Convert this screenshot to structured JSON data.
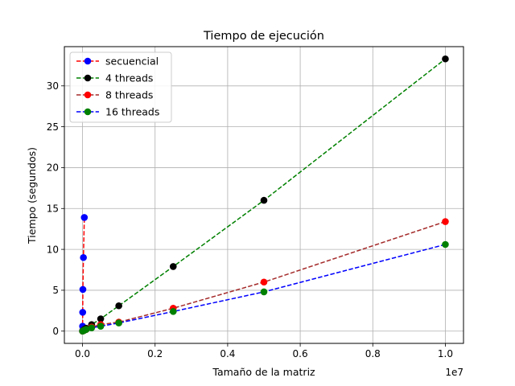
{
  "chart_data": {
    "type": "line",
    "title": "Tiempo de ejecución",
    "xlabel": "Tamaño de la matriz",
    "ylabel": "Tiempo (segundos)",
    "x_offset_label": "1e7",
    "xlim": [
      -500000,
      10500000
    ],
    "ylim": [
      -1.5,
      34.8
    ],
    "x_scale": 10000000,
    "x_ticks": [
      0,
      2000000,
      4000000,
      6000000,
      8000000,
      10000000
    ],
    "x_tick_labels": [
      "0.0",
      "0.2",
      "0.4",
      "0.6",
      "0.8",
      "1.0"
    ],
    "y_ticks": [
      0,
      5,
      10,
      15,
      20,
      25,
      30
    ],
    "y_tick_labels": [
      "0",
      "5",
      "10",
      "15",
      "20",
      "25",
      "30"
    ],
    "grid": true,
    "legend_position": "top-left",
    "series": [
      {
        "name": "secuencial",
        "line_color": "#ff0000",
        "marker_color": "#0000ff",
        "x": [
          1000,
          2500,
          5000,
          10000,
          25000,
          50000
        ],
        "y": [
          0.05,
          0.6,
          2.3,
          5.1,
          9.0,
          13.9
        ]
      },
      {
        "name": "4 threads",
        "line_color": "#008000",
        "marker_color": "#000000",
        "x": [
          1000,
          25000,
          50000,
          100000,
          250000,
          500000,
          1000000,
          2500000,
          5000000,
          10000000
        ],
        "y": [
          0.0,
          0.1,
          0.2,
          0.35,
          0.8,
          1.5,
          3.1,
          7.9,
          16.0,
          33.3
        ]
      },
      {
        "name": "8 threads",
        "line_color": "#a52a2a",
        "marker_color": "#ff0000",
        "x": [
          1000,
          25000,
          50000,
          100000,
          250000,
          500000,
          1000000,
          2500000,
          5000000,
          10000000
        ],
        "y": [
          0.0,
          0.05,
          0.1,
          0.2,
          0.5,
          0.8,
          1.1,
          2.8,
          6.0,
          13.4
        ]
      },
      {
        "name": "16 threads",
        "line_color": "#0000ff",
        "marker_color": "#008000",
        "x": [
          1000,
          25000,
          50000,
          100000,
          250000,
          500000,
          1000000,
          2500000,
          5000000,
          10000000
        ],
        "y": [
          0.0,
          0.05,
          0.1,
          0.2,
          0.4,
          0.6,
          1.0,
          2.4,
          4.8,
          10.6
        ]
      }
    ]
  }
}
